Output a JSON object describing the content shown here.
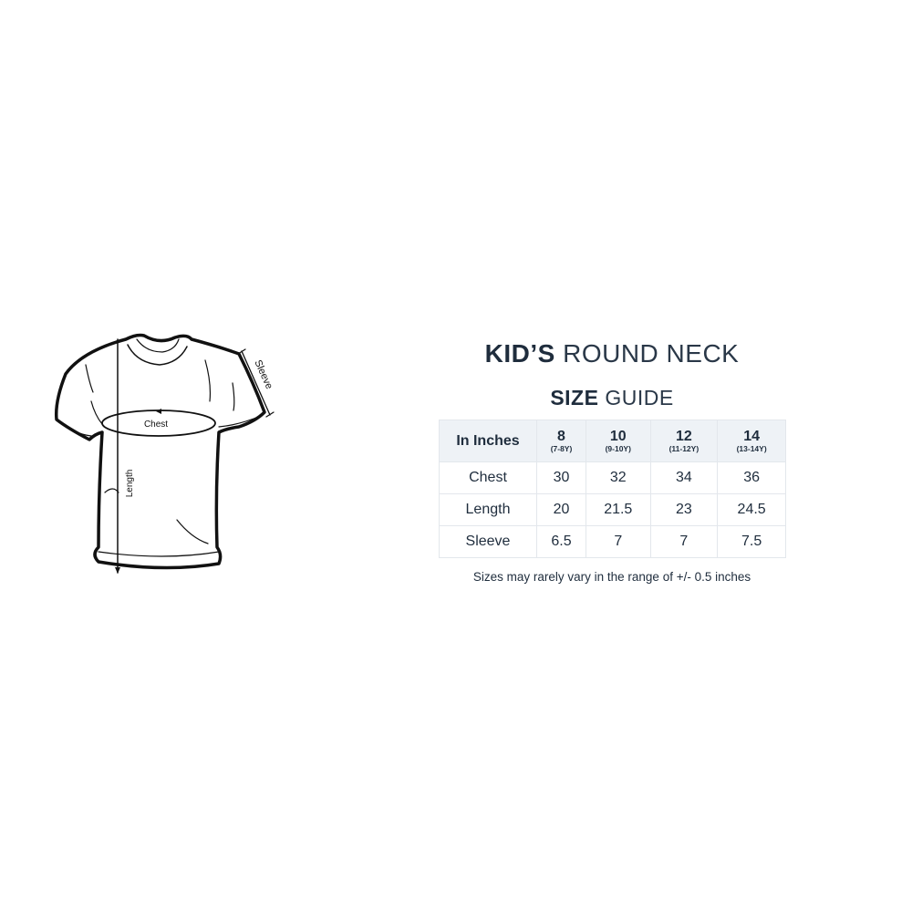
{
  "diagram": {
    "labels": {
      "chest": "Chest",
      "length": "Length",
      "sleeve": "Sleeve"
    }
  },
  "title": {
    "line1_bold": "KID’S",
    "line1_light": "ROUND NECK",
    "line2_bold": "SIZE",
    "line2_light": "GUIDE"
  },
  "table": {
    "corner": "In Inches",
    "columns": [
      {
        "size": "8",
        "age": "(7-8Y)"
      },
      {
        "size": "10",
        "age": "(9-10Y)"
      },
      {
        "size": "12",
        "age": "(11-12Y)"
      },
      {
        "size": "14",
        "age": "(13-14Y)"
      }
    ],
    "rows": [
      {
        "label": "Chest",
        "values": [
          "30",
          "32",
          "34",
          "36"
        ]
      },
      {
        "label": "Length",
        "values": [
          "20",
          "21.5",
          "23",
          "24.5"
        ]
      },
      {
        "label": "Sleeve",
        "values": [
          "6.5",
          "7",
          "7",
          "7.5"
        ]
      }
    ],
    "header_bg": "#eef2f6",
    "text_color": "#1f2d3d"
  },
  "note": "Sizes may rarely vary in the range of +/- 0.5 inches"
}
